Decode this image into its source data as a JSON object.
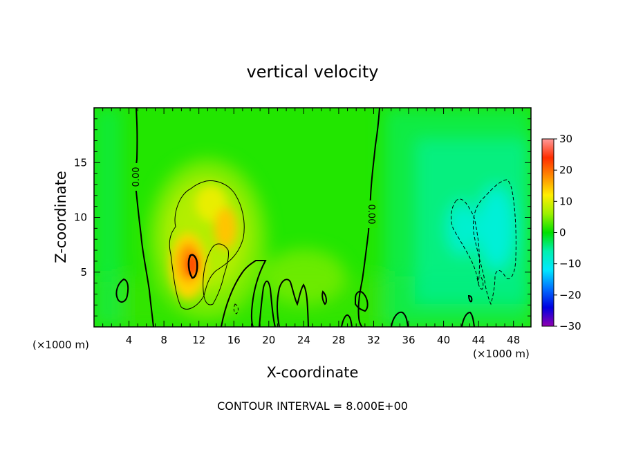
{
  "chart_data": {
    "type": "heatmap",
    "title": "vertical velocity",
    "xlabel": "X-coordinate",
    "ylabel": "Z-coordinate",
    "x_unit": "(×1000 m)",
    "xlim": [
      0,
      50
    ],
    "ylim": [
      0,
      20
    ],
    "x_ticks": [
      4,
      8,
      12,
      16,
      20,
      24,
      28,
      32,
      36,
      40,
      44,
      48
    ],
    "y_ticks": [
      5,
      10,
      15
    ],
    "colorbar": {
      "min": -30,
      "max": 30,
      "ticks": [
        30,
        20,
        10,
        0,
        -10,
        -20,
        -30
      ],
      "tick_labels": [
        "30",
        "20",
        "10",
        "0",
        "−10",
        "−20",
        "−30"
      ]
    },
    "contour_interval_text": "CONTOUR INTERVAL = 8.000E+00",
    "contour_labels": [
      "0.00",
      "0.00"
    ],
    "features": [
      {
        "kind": "updraft",
        "x": 11.5,
        "z": 6,
        "peak": 22
      },
      {
        "kind": "updraft",
        "x": 15.5,
        "z": 8.5,
        "peak": 14
      },
      {
        "kind": "updraft",
        "x": 13,
        "z": 11,
        "peak": 10
      },
      {
        "kind": "downdraft",
        "x": 46.5,
        "z": 8.5,
        "peak": -9
      },
      {
        "kind": "downdraft",
        "x": 42,
        "z": 9,
        "peak": -8
      }
    ]
  }
}
